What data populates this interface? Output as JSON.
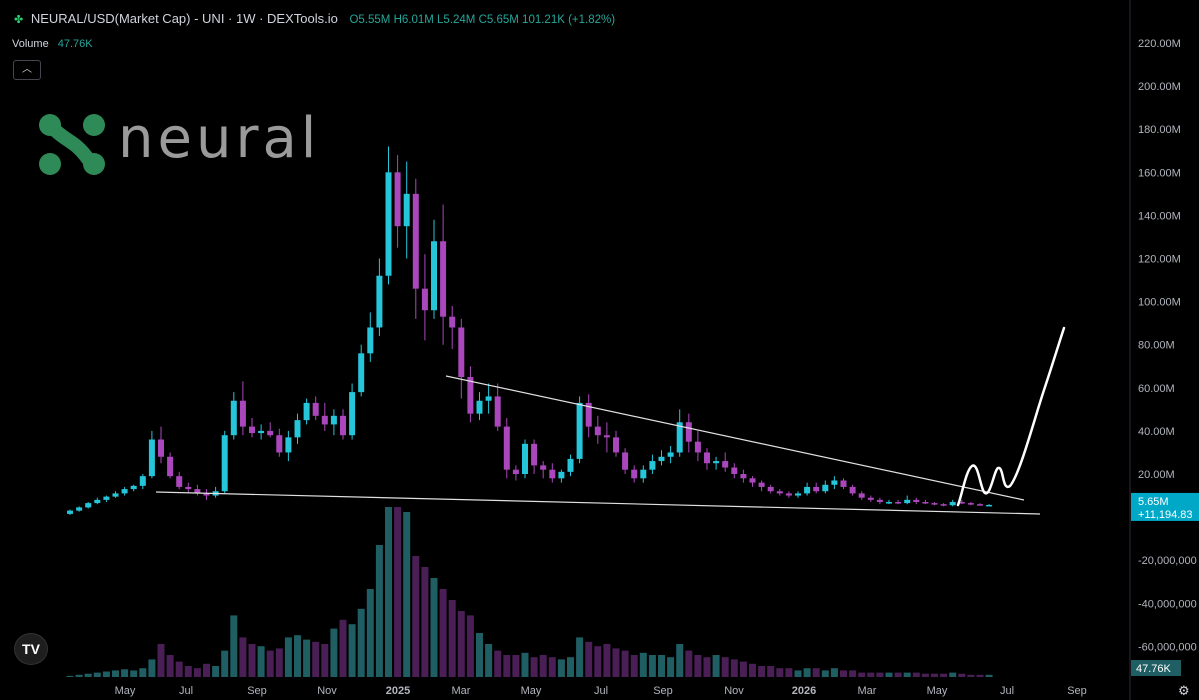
{
  "header": {
    "symbol": "NEURAL/USD(Market Cap) - UNI · 1W · DEXTools.io",
    "ohlc": "O5.55M H6.01M L5.24M C5.65M 101.21K (+1.82%)",
    "volume_label": "Volume",
    "volume_value": "47.76K"
  },
  "logo": {
    "text": "neural"
  },
  "colors": {
    "up": "#26c6da",
    "down": "#ab47bc",
    "vol_up": "#1f5e63",
    "vol_down": "#4a1f55",
    "trend": "#e0e0e0",
    "badge": "#00a8c8",
    "bg": "#000000"
  },
  "chart_data": {
    "type": "candlestick",
    "title": "NEURAL/USD(Market Cap) - UNI · 1W · DEXTools.io",
    "x_ticks": [
      "May",
      "Jul",
      "Sep",
      "Nov",
      "2025",
      "Mar",
      "May",
      "Jul",
      "Sep",
      "Nov",
      "2026",
      "Mar",
      "May",
      "Jul",
      "Sep"
    ],
    "y_ticks": [
      "220.00M",
      "200.00M",
      "180.00M",
      "160.00M",
      "140.00M",
      "120.00M",
      "100.00M",
      "80.00M",
      "60.00M",
      "40.00M",
      "20.00M",
      "-20,000,000",
      "-40,000,000",
      "-60,000,000"
    ],
    "y_tick_values": [
      220,
      200,
      180,
      160,
      140,
      120,
      100,
      80,
      60,
      40,
      20,
      -20,
      -40,
      -60
    ],
    "ylim": [
      -82,
      232
    ],
    "price_badge": {
      "value": 5.65,
      "line1": "5.65M",
      "line2": "+11,194.83"
    },
    "volume_badge": "47.76K",
    "series": [
      {
        "name": "NEURAL/USD Market Cap",
        "unit": "M",
        "ohlc": [
          [
            1.5,
            3.5,
            1,
            3
          ],
          [
            3,
            5,
            2.5,
            4.5
          ],
          [
            4.5,
            7,
            4,
            6.5
          ],
          [
            6.5,
            9,
            6,
            8
          ],
          [
            8,
            10,
            7,
            9.5
          ],
          [
            9.5,
            12,
            9,
            11
          ],
          [
            11,
            14,
            10,
            13
          ],
          [
            13,
            15,
            12,
            14.5
          ],
          [
            14.5,
            20,
            13,
            19
          ],
          [
            19,
            40,
            18,
            36
          ],
          [
            36,
            42,
            25,
            28
          ],
          [
            28,
            30,
            18,
            19
          ],
          [
            19,
            21,
            13,
            14
          ],
          [
            14,
            16,
            11,
            13
          ],
          [
            13,
            15,
            10,
            11
          ],
          [
            11,
            13,
            8,
            10
          ],
          [
            10,
            14,
            9,
            12
          ],
          [
            12,
            40,
            11,
            38
          ],
          [
            38,
            58,
            36,
            54
          ],
          [
            54,
            63,
            38,
            42
          ],
          [
            42,
            46,
            37,
            39
          ],
          [
            39,
            43,
            36,
            40
          ],
          [
            40,
            44,
            37,
            38
          ],
          [
            38,
            41,
            28,
            30
          ],
          [
            30,
            40,
            26,
            37
          ],
          [
            37,
            48,
            34,
            45
          ],
          [
            45,
            55,
            43,
            53
          ],
          [
            53,
            56,
            45,
            47
          ],
          [
            47,
            53,
            40,
            43
          ],
          [
            43,
            50,
            38,
            47
          ],
          [
            47,
            50,
            36,
            38
          ],
          [
            38,
            62,
            36,
            58
          ],
          [
            58,
            80,
            56,
            76
          ],
          [
            76,
            95,
            72,
            88
          ],
          [
            88,
            120,
            84,
            112
          ],
          [
            112,
            172,
            108,
            160
          ],
          [
            160,
            168,
            125,
            135
          ],
          [
            135,
            165,
            120,
            150
          ],
          [
            150,
            157,
            92,
            106
          ],
          [
            106,
            122,
            82,
            96
          ],
          [
            96,
            138,
            92,
            128
          ],
          [
            128,
            145,
            80,
            93
          ],
          [
            93,
            98,
            78,
            88
          ],
          [
            88,
            92,
            55,
            65
          ],
          [
            65,
            70,
            44,
            48
          ],
          [
            48,
            58,
            45,
            54
          ],
          [
            54,
            62,
            48,
            56
          ],
          [
            56,
            62,
            40,
            42
          ],
          [
            42,
            46,
            18,
            22
          ],
          [
            22,
            24,
            17,
            20
          ],
          [
            20,
            36,
            18,
            34
          ],
          [
            34,
            36,
            20,
            24
          ],
          [
            24,
            26,
            18,
            22
          ],
          [
            22,
            25,
            16,
            18
          ],
          [
            18,
            22,
            16,
            21
          ],
          [
            21,
            29,
            19,
            27
          ],
          [
            27,
            56,
            25,
            53
          ],
          [
            53,
            57,
            37,
            42
          ],
          [
            42,
            47,
            34,
            38
          ],
          [
            38,
            44,
            30,
            37
          ],
          [
            37,
            40,
            28,
            30
          ],
          [
            30,
            32,
            20,
            22
          ],
          [
            22,
            24,
            16,
            18
          ],
          [
            18,
            24,
            16,
            22
          ],
          [
            22,
            29,
            20,
            26
          ],
          [
            26,
            31,
            24,
            28
          ],
          [
            28,
            33,
            25,
            30
          ],
          [
            30,
            50,
            28,
            44
          ],
          [
            44,
            48,
            30,
            35
          ],
          [
            35,
            40,
            26,
            30
          ],
          [
            30,
            32,
            22,
            25
          ],
          [
            25,
            28,
            22,
            26
          ],
          [
            26,
            30,
            21,
            23
          ],
          [
            23,
            25,
            18,
            20
          ],
          [
            20,
            22,
            16,
            18
          ],
          [
            18,
            19,
            14,
            16
          ],
          [
            16,
            17,
            12,
            14
          ],
          [
            14,
            15,
            11,
            12
          ],
          [
            12,
            13,
            10,
            11
          ],
          [
            11,
            12,
            9,
            10
          ],
          [
            10,
            12,
            9,
            11
          ],
          [
            11,
            16,
            10,
            14
          ],
          [
            14,
            16,
            11,
            12
          ],
          [
            12,
            17,
            11,
            15
          ],
          [
            15,
            19,
            13,
            17
          ],
          [
            17,
            18,
            13,
            14
          ],
          [
            14,
            15,
            10,
            11
          ],
          [
            11,
            12,
            8,
            9
          ],
          [
            9,
            10,
            7,
            8
          ],
          [
            8,
            9,
            6,
            7
          ],
          [
            7,
            8,
            6,
            7
          ],
          [
            7,
            8,
            6,
            6.5
          ],
          [
            6.5,
            10,
            6,
            8
          ],
          [
            8,
            9,
            6,
            7
          ],
          [
            7,
            8,
            6,
            6.5
          ],
          [
            6.5,
            7,
            5.5,
            6
          ],
          [
            6,
            6.5,
            5,
            5.5
          ],
          [
            5.5,
            8,
            5,
            7
          ],
          [
            7,
            8,
            6,
            6.5
          ],
          [
            6.5,
            7,
            5.5,
            6
          ],
          [
            6,
            6.5,
            5.3,
            5.55
          ],
          [
            5.55,
            6.01,
            5.24,
            5.65
          ]
        ],
        "volume": [
          0.5,
          1,
          1.5,
          2,
          2.5,
          3,
          3.5,
          3,
          4,
          8,
          15,
          10,
          7,
          5,
          4,
          6,
          5,
          12,
          28,
          18,
          15,
          14,
          12,
          13,
          18,
          19,
          17,
          16,
          15,
          22,
          26,
          24,
          31,
          40,
          60,
          85,
          80,
          75,
          55,
          50,
          45,
          40,
          35,
          30,
          28,
          20,
          15,
          12,
          10,
          10,
          11,
          9,
          10,
          9,
          8,
          9,
          18,
          16,
          14,
          15,
          13,
          12,
          10,
          11,
          10,
          10,
          9,
          15,
          12,
          10,
          9,
          10,
          9,
          8,
          7,
          6,
          5,
          5,
          4,
          4,
          3,
          4,
          4,
          3,
          4,
          3,
          3,
          2,
          2,
          2,
          2,
          2,
          2,
          2,
          1.5,
          1.5,
          1.5,
          2,
          1.5,
          1,
          1,
          1
        ]
      }
    ]
  }
}
